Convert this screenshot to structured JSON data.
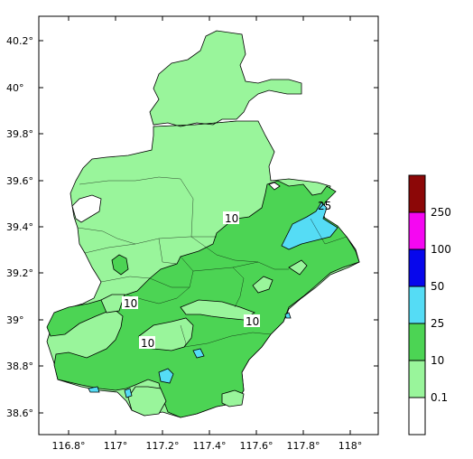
{
  "map": {
    "x_ticks": [
      "116.8°",
      "117°",
      "117.2°",
      "117.4°",
      "117.6°",
      "117.8°",
      "118°"
    ],
    "y_ticks": [
      "40.2°",
      "40°",
      "39.8°",
      "39.6°",
      "39.4°",
      "39.2°",
      "39°",
      "38.8°",
      "38.6°"
    ],
    "contour_labels": [
      "10",
      "10",
      "10",
      "10",
      "25"
    ],
    "colors": {
      "c_0_1": "#ffffff",
      "c_0_1_10": "#99f59b",
      "c_10_25": "#4cd454",
      "c_25_50": "#55dcf5",
      "c_50_100": "#0707ec",
      "c_100_250": "#f507f2",
      "c_250_plus": "#8c0707"
    }
  },
  "legend": {
    "labels": [
      "250",
      "100",
      "50",
      "25",
      "10",
      "0.1"
    ]
  }
}
